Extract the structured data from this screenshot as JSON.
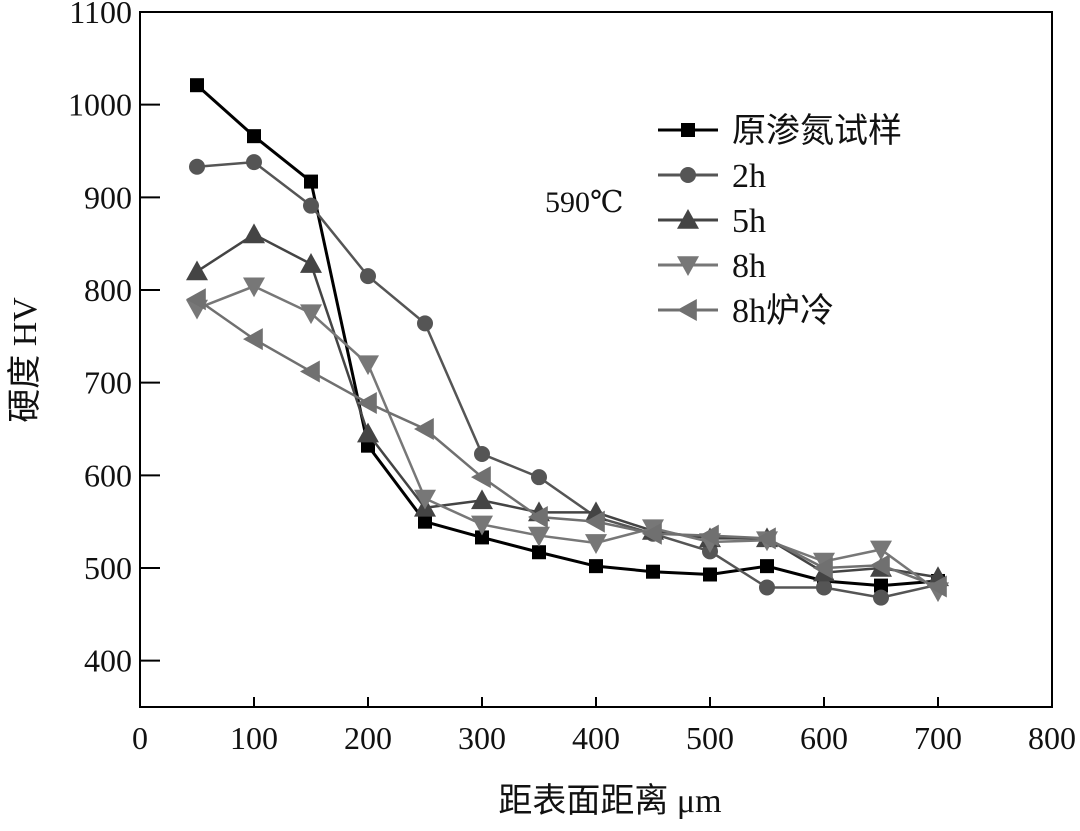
{
  "chart_data": {
    "type": "line",
    "title": "",
    "xlabel": "距表面距离 μm",
    "ylabel": "硬度 HV",
    "xlim": [
      0,
      800
    ],
    "ylim": [
      350,
      1100
    ],
    "xticks": [
      0,
      100,
      200,
      300,
      400,
      500,
      600,
      700,
      800
    ],
    "yticks": [
      400,
      500,
      600,
      700,
      800,
      900,
      1000,
      1100
    ],
    "grid": false,
    "legend_position": "top-right",
    "annotation": "590℃",
    "x": [
      50,
      100,
      150,
      200,
      250,
      300,
      350,
      400,
      450,
      500,
      550,
      600,
      650,
      700
    ],
    "series": [
      {
        "name": "原渗氮试样",
        "marker": "square",
        "color": "#000000",
        "values": [
          1021,
          966,
          917,
          632,
          550,
          533,
          517,
          502,
          496,
          493,
          502,
          486,
          481,
          486
        ]
      },
      {
        "name": "2h",
        "marker": "circle",
        "color": "#555555",
        "values": [
          933,
          938,
          891,
          815,
          764,
          623,
          598,
          555,
          537,
          518,
          479,
          479,
          468,
          482
        ]
      },
      {
        "name": "5h",
        "marker": "triangle-up",
        "color": "#444444",
        "values": [
          820,
          860,
          828,
          645,
          565,
          573,
          560,
          560,
          540,
          532,
          532,
          495,
          500,
          490
        ]
      },
      {
        "name": "8h",
        "marker": "triangle-down",
        "color": "#777777",
        "values": [
          780,
          804,
          775,
          720,
          575,
          547,
          535,
          527,
          543,
          528,
          530,
          507,
          520,
          475
        ]
      },
      {
        "name": "8h炉冷",
        "marker": "triangle-left",
        "color": "#707070",
        "values": [
          790,
          747,
          712,
          678,
          650,
          598,
          555,
          550,
          537,
          535,
          532,
          500,
          503,
          480
        ]
      }
    ]
  }
}
